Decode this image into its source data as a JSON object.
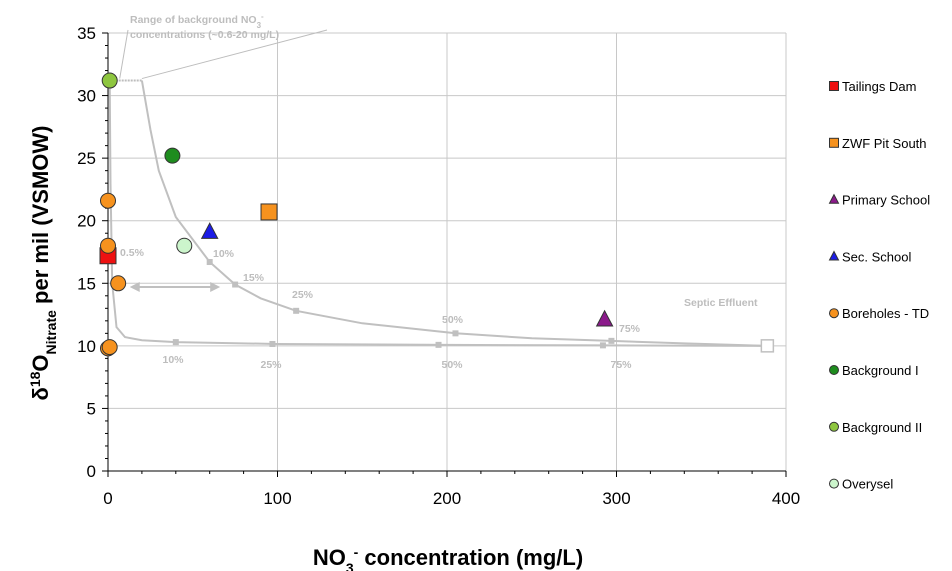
{
  "chart_data": {
    "type": "scatter",
    "xlim": [
      0,
      400
    ],
    "ylim": [
      0,
      35
    ],
    "x_ticks": [
      "0",
      "100",
      "200",
      "300",
      "400"
    ],
    "y_ticks": [
      "0",
      "5",
      "10",
      "15",
      "20",
      "25",
      "30",
      "35"
    ],
    "grid": true,
    "legend_position": "right",
    "ylabel": {
      "delta": "δ",
      "sup": "18",
      "o": "O",
      "sub": "Nitrate",
      "rest": " per mil (VSMOW)"
    },
    "xlabel": {
      "no": "NO",
      "sub": "3",
      "sup": "-",
      "rest": " concentration (mg/L)"
    },
    "series": [
      {
        "name": "Tailings Dam",
        "marker": "square",
        "color": "#ee1111",
        "points": [
          [
            0,
            17.2
          ]
        ]
      },
      {
        "name": "ZWF Pit South",
        "marker": "square",
        "color": "#f6921e",
        "points": [
          [
            95,
            20.7
          ]
        ]
      },
      {
        "name": "Primary School",
        "marker": "triangle",
        "color": "#8b1a8b",
        "points": [
          [
            293,
            12.1
          ]
        ]
      },
      {
        "name": "Sec. School",
        "marker": "triangle",
        "color": "#1c1ce6",
        "points": [
          [
            60,
            19.1
          ]
        ]
      },
      {
        "name": "Boreholes - TD",
        "marker": "circle",
        "color": "#f6921e",
        "points": [
          [
            0,
            21.6
          ],
          [
            0,
            18.0
          ],
          [
            6,
            15.0
          ],
          [
            0,
            9.8
          ],
          [
            1,
            9.9
          ]
        ]
      },
      {
        "name": "Background I",
        "marker": "circle",
        "color": "#1e8c1e",
        "points": [
          [
            38,
            25.2
          ]
        ]
      },
      {
        "name": "Background II",
        "marker": "circle",
        "color": "#8ec63f",
        "points": [
          [
            1,
            31.2
          ]
        ]
      },
      {
        "name": "Overysel",
        "marker": "circle",
        "color": "#ccf5cc",
        "points": [
          [
            45,
            18.0
          ]
        ]
      }
    ],
    "mixing_curves": [
      {
        "name": "upper",
        "points": [
          [
            20,
            31.2
          ],
          [
            25,
            27.3
          ],
          [
            30,
            24.0
          ],
          [
            40,
            20.3
          ],
          [
            60,
            16.7
          ],
          [
            75,
            14.9
          ],
          [
            90,
            13.8
          ],
          [
            111,
            12.8
          ],
          [
            150,
            11.8
          ],
          [
            205,
            11.0
          ],
          [
            250,
            10.6
          ],
          [
            297,
            10.4
          ],
          [
            340,
            10.2
          ],
          [
            389,
            10.0
          ]
        ],
        "markers": [
          [
            60,
            16.7
          ],
          [
            75,
            14.9
          ],
          [
            111,
            12.8
          ],
          [
            205,
            11.0
          ],
          [
            297,
            10.4
          ]
        ]
      },
      {
        "name": "lower",
        "points": [
          [
            1,
            31.2
          ],
          [
            1.5,
            23.0
          ],
          [
            2.5,
            15.0
          ],
          [
            5,
            11.5
          ],
          [
            10,
            10.7
          ],
          [
            20,
            10.45
          ],
          [
            40,
            10.3
          ],
          [
            100,
            10.15
          ],
          [
            200,
            10.08
          ],
          [
            300,
            10.04
          ],
          [
            389,
            10.0
          ]
        ],
        "markers": [
          [
            40,
            10.3
          ],
          [
            97,
            10.15
          ],
          [
            195,
            10.08
          ],
          [
            292,
            10.04
          ]
        ]
      }
    ],
    "bg_range_line": {
      "x": [
        1,
        20
      ],
      "y": 31.2
    },
    "double_arrow": {
      "x": [
        14,
        65
      ],
      "y": 14.7
    },
    "septic_effluent_point": [
      389,
      10.0
    ],
    "annotations": {
      "range_line1": "Range of background NO",
      "range_sub": "3",
      "range_sup": "-",
      "range_line2": "concentrations (~0.6-20 mg/L)",
      "septic": "Septic Effluent",
      "upper_labels": [
        "0.5%",
        "10%",
        "15%",
        "25%",
        "50%",
        "75%"
      ],
      "lower_labels": [
        "10%",
        "25%",
        "50%",
        "75%"
      ]
    }
  }
}
